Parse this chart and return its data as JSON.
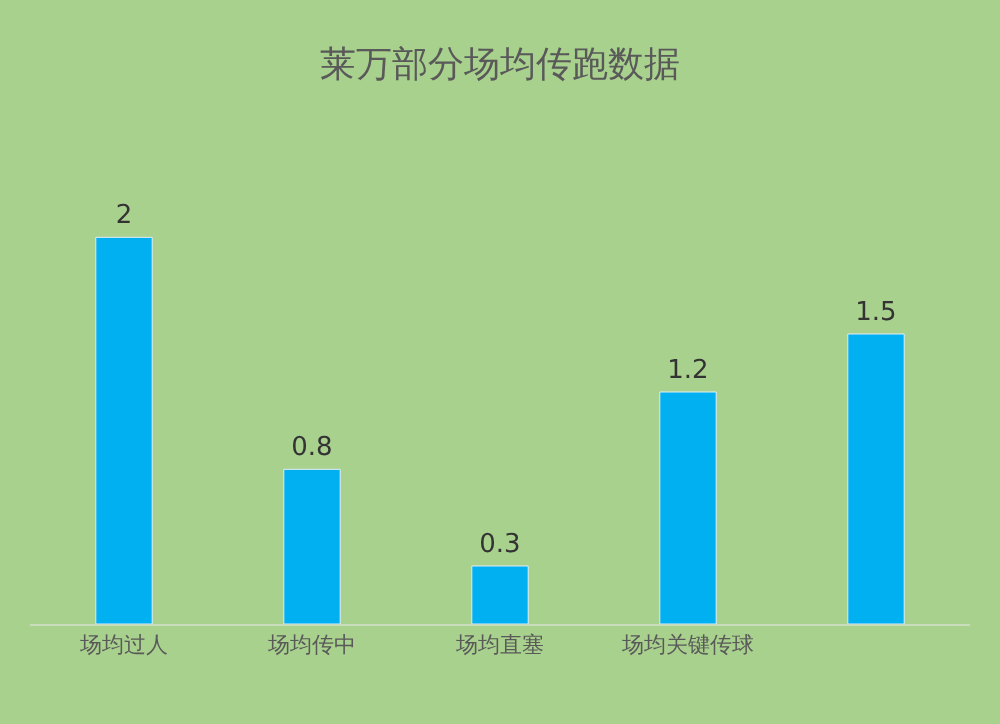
{
  "chart_data": {
    "type": "bar",
    "title": "莱万部分场均传跑数据",
    "categories": [
      "场均过人",
      "场均传中",
      "场均直塞",
      "场均关键传球",
      null
    ],
    "values": [
      2,
      0.8,
      0.3,
      1.2,
      1.5
    ],
    "color": "#00b0f0",
    "data_labels": true
  }
}
